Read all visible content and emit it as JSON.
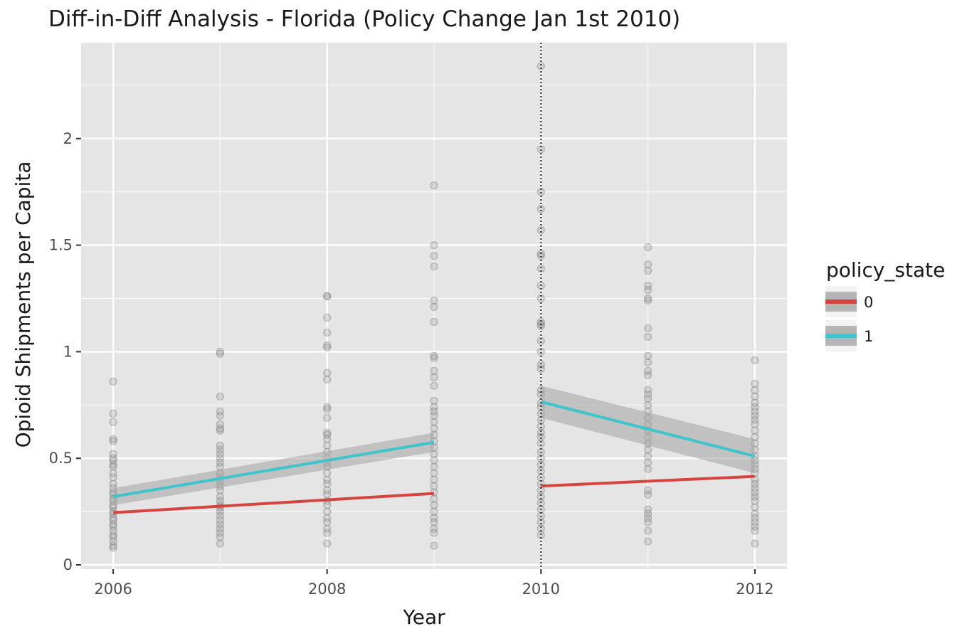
{
  "chart_data": {
    "type": "scatter",
    "title": "Diff-in-Diff Analysis - Florida (Policy Change Jan 1st 2010)",
    "xlabel": "Year",
    "ylabel": "Opioid Shipments per Capita",
    "xlim": [
      2005.7,
      2012.3
    ],
    "ylim": [
      -0.02,
      2.45
    ],
    "x_ticks": [
      2006,
      2008,
      2010,
      2012
    ],
    "x_tick_labels": [
      "2006",
      "2008",
      "2010",
      "2012"
    ],
    "y_ticks": [
      0,
      0.5,
      1,
      1.5,
      2
    ],
    "y_tick_labels": [
      "0",
      "0.5",
      "1",
      "1.5",
      "2"
    ],
    "grid": true,
    "vline": {
      "x": 2010,
      "style": "dotted"
    },
    "legend": {
      "title": "policy_state",
      "position": "right"
    },
    "points": [
      {
        "x": 2006,
        "y": [
          0.86,
          0.71,
          0.67,
          0.59,
          0.58,
          0.52,
          0.5,
          0.49,
          0.47,
          0.46,
          0.43,
          0.41,
          0.38,
          0.36,
          0.34,
          0.33,
          0.31,
          0.3,
          0.28,
          0.27,
          0.25,
          0.24,
          0.22,
          0.21,
          0.19,
          0.18,
          0.16,
          0.14,
          0.13,
          0.11,
          0.09,
          0.08
        ]
      },
      {
        "x": 2007,
        "y": [
          1.0,
          0.99,
          0.79,
          0.72,
          0.7,
          0.66,
          0.64,
          0.63,
          0.56,
          0.54,
          0.52,
          0.5,
          0.48,
          0.46,
          0.43,
          0.41,
          0.39,
          0.37,
          0.35,
          0.32,
          0.3,
          0.28,
          0.27,
          0.25,
          0.23,
          0.21,
          0.19,
          0.17,
          0.15,
          0.13,
          0.1
        ]
      },
      {
        "x": 2008,
        "y": [
          1.26,
          1.26,
          1.16,
          1.09,
          1.03,
          1.02,
          0.9,
          0.87,
          0.74,
          0.73,
          0.69,
          0.62,
          0.61,
          0.59,
          0.56,
          0.53,
          0.5,
          0.48,
          0.46,
          0.43,
          0.4,
          0.38,
          0.35,
          0.33,
          0.3,
          0.28,
          0.25,
          0.22,
          0.2,
          0.17,
          0.15,
          0.1
        ]
      },
      {
        "x": 2009,
        "y": [
          1.78,
          1.5,
          1.45,
          1.4,
          1.24,
          1.21,
          1.14,
          0.98,
          0.97,
          0.91,
          0.88,
          0.84,
          0.77,
          0.74,
          0.72,
          0.7,
          0.67,
          0.64,
          0.61,
          0.58,
          0.55,
          0.52,
          0.49,
          0.46,
          0.43,
          0.4,
          0.37,
          0.34,
          0.31,
          0.28,
          0.25,
          0.22,
          0.2,
          0.17,
          0.15,
          0.09
        ]
      },
      {
        "x": 2010,
        "y": [
          2.34,
          1.95,
          1.75,
          1.67,
          1.57,
          1.46,
          1.45,
          1.39,
          1.31,
          1.25,
          1.14,
          1.13,
          1.12,
          1.05,
          1.0,
          0.94,
          0.92,
          0.82,
          0.8,
          0.76,
          0.74,
          0.71,
          0.68,
          0.65,
          0.62,
          0.6,
          0.57,
          0.53,
          0.5,
          0.47,
          0.44,
          0.41,
          0.38,
          0.35,
          0.32,
          0.29,
          0.26,
          0.23,
          0.2,
          0.17,
          0.14
        ]
      },
      {
        "x": 2011,
        "y": [
          1.49,
          1.41,
          1.38,
          1.31,
          1.29,
          1.25,
          1.24,
          1.11,
          1.07,
          0.98,
          0.95,
          0.91,
          0.89,
          0.82,
          0.8,
          0.78,
          0.75,
          0.72,
          0.69,
          0.66,
          0.63,
          0.6,
          0.57,
          0.54,
          0.51,
          0.48,
          0.45,
          0.35,
          0.33,
          0.26,
          0.24,
          0.22,
          0.2,
          0.16,
          0.11
        ]
      },
      {
        "x": 2012,
        "y": [
          0.96,
          0.85,
          0.82,
          0.79,
          0.76,
          0.74,
          0.72,
          0.7,
          0.68,
          0.66,
          0.63,
          0.6,
          0.57,
          0.54,
          0.51,
          0.49,
          0.47,
          0.45,
          0.43,
          0.4,
          0.38,
          0.36,
          0.34,
          0.32,
          0.3,
          0.27,
          0.24,
          0.22,
          0.2,
          0.18,
          0.16,
          0.1
        ]
      }
    ],
    "series": [
      {
        "name": "0",
        "color": "#d5443e",
        "segments": [
          {
            "x": [
              2006,
              2009
            ],
            "y": [
              0.245,
              0.335
            ],
            "ci": null
          },
          {
            "x": [
              2010,
              2012
            ],
            "y": [
              0.37,
              0.415
            ],
            "ci": null
          }
        ]
      },
      {
        "name": "1",
        "color": "#3fc4cc",
        "segments": [
          {
            "x": [
              2006,
              2009
            ],
            "y": [
              0.32,
              0.575
            ],
            "ci_lower": [
              0.28,
              0.53
            ],
            "ci_upper": [
              0.36,
              0.62
            ]
          },
          {
            "x": [
              2010,
              2012
            ],
            "y": [
              0.765,
              0.51
            ],
            "ci_lower": [
              0.69,
              0.43
            ],
            "ci_upper": [
              0.84,
              0.59
            ]
          }
        ]
      }
    ],
    "colors": {
      "panel_background": "#e5e5e5",
      "grid_major": "#ffffff",
      "point": "#7f7f7f",
      "ci_band": "#a9a9a9"
    }
  }
}
